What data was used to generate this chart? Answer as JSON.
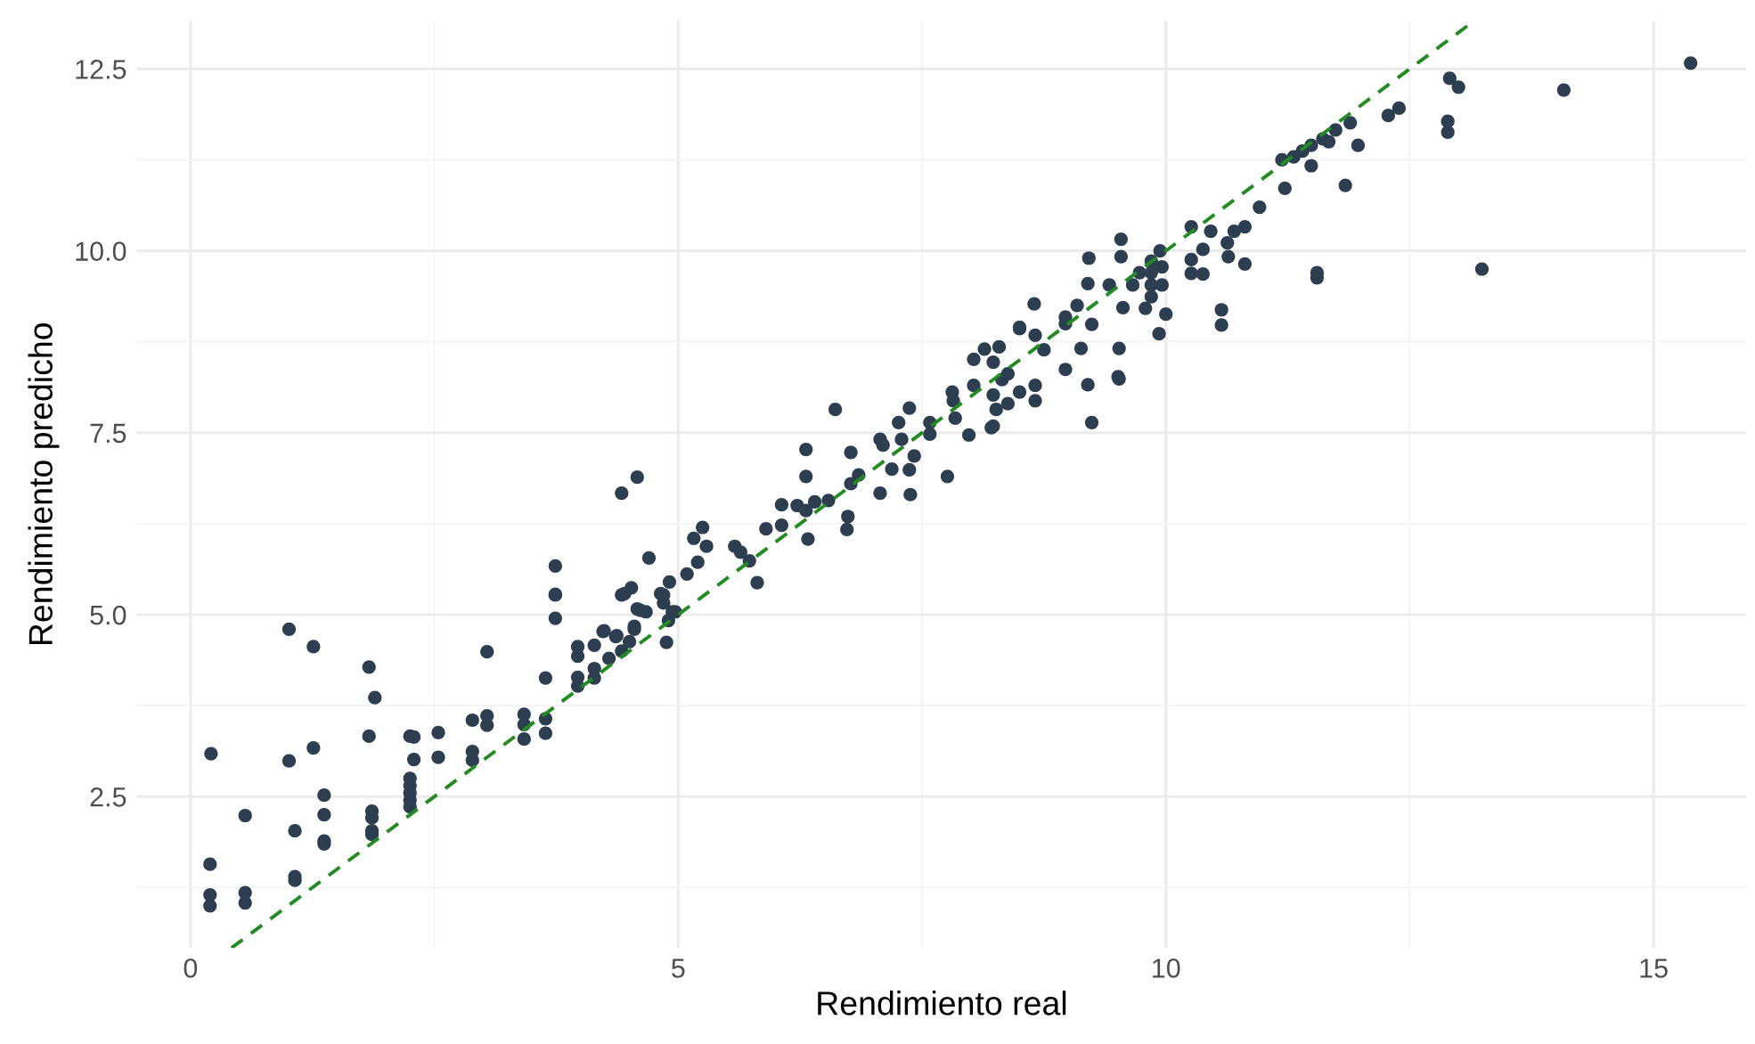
{
  "chart_data": {
    "type": "scatter",
    "xlabel": "Rendimiento real",
    "ylabel": "Rendimiento predicho",
    "xlim": [
      -0.55,
      15.95
    ],
    "ylim": [
      0.42,
      13.16
    ],
    "xticks": [
      0,
      5,
      10,
      15
    ],
    "yticks": [
      {
        "value": 2.5,
        "label": "2.5"
      },
      {
        "value": 5.0,
        "label": "5.0"
      },
      {
        "value": 7.5,
        "label": "7.5"
      },
      {
        "value": 10.0,
        "label": "10.0"
      },
      {
        "value": 12.5,
        "label": "12.5"
      }
    ],
    "grid": true,
    "marker": "circle",
    "series": [
      {
        "color": "#2c3e50",
        "x": [
          0.21,
          0.2,
          0.2,
          0.2,
          0.56,
          0.56,
          0.56,
          1.01,
          1.01,
          1.07,
          1.07,
          1.07,
          1.26,
          1.26,
          1.37,
          1.37,
          1.37,
          1.37,
          1.83,
          1.89,
          1.83,
          1.86,
          1.86,
          1.86,
          1.86,
          2.25,
          2.29,
          2.29,
          2.25,
          2.25,
          2.25,
          2.25,
          2.25,
          2.54,
          2.54,
          2.89,
          2.89,
          2.89,
          3.04,
          3.04,
          3.04,
          3.42,
          3.42,
          3.42,
          3.64,
          3.64,
          3.64,
          3.74,
          3.74,
          3.97,
          3.97,
          3.97,
          3.97,
          4.14,
          4.14,
          4.14,
          4.23,
          4.29,
          4.37,
          4.42,
          4.42,
          4.5,
          4.55,
          4.58,
          4.67,
          4.85,
          4.85,
          4.9,
          4.88,
          4.97,
          3.74,
          3.74,
          4.42,
          4.58,
          4.7,
          4.45,
          4.52,
          4.24,
          4.36,
          4.55,
          4.61,
          4.82,
          4.91,
          4.94,
          5.09,
          5.16,
          5.25,
          5.2,
          5.29,
          5.58,
          5.64,
          5.73,
          5.81,
          5.9,
          6.06,
          6.06,
          6.22,
          6.31,
          6.31,
          6.31,
          6.33,
          6.4,
          6.54,
          6.61,
          6.74,
          6.73,
          6.77,
          6.77,
          6.85,
          7.07,
          7.07,
          7.1,
          7.26,
          7.29,
          7.19,
          7.37,
          7.37,
          7.38,
          7.42,
          7.58,
          7.58,
          7.76,
          7.81,
          7.82,
          7.84,
          7.98,
          8.03,
          8.03,
          8.14,
          8.23,
          8.23,
          8.23,
          8.29,
          8.32,
          8.38,
          8.5,
          8.5,
          8.65,
          8.66,
          8.66,
          8.66,
          8.75,
          8.97,
          8.97,
          9.09,
          9.2,
          9.2,
          9.24,
          9.24,
          9.42,
          9.51,
          15.38,
          14.08,
          12.91,
          13.0,
          12.89,
          12.89,
          13.24,
          12.28,
          12.39,
          11.55,
          11.55,
          11.84,
          11.97,
          11.89,
          11.74,
          11.61,
          11.49,
          11.4,
          11.31,
          11.19,
          11.49,
          11.67,
          11.22,
          10.96,
          10.81,
          10.7,
          10.63,
          10.64,
          10.81,
          10.46,
          10.38,
          10.26,
          10.26,
          10.38,
          10.26,
          10.57,
          10.57,
          10.0,
          9.93,
          9.54,
          9.54,
          9.21,
          9.85,
          9.85,
          9.85,
          9.85,
          9.79,
          9.94,
          9.96,
          9.96,
          9.73,
          9.66,
          9.56,
          9.52,
          9.52,
          8.97,
          9.13,
          8.5,
          8.26,
          8.21,
          8.38
        ],
        "values": [
          3.09,
          1.57,
          1.15,
          1.0,
          2.24,
          1.18,
          1.04,
          4.8,
          2.99,
          2.03,
          1.4,
          1.35,
          4.56,
          3.17,
          2.52,
          2.25,
          1.89,
          1.85,
          4.28,
          3.86,
          3.33,
          2.3,
          2.21,
          2.03,
          1.98,
          3.33,
          3.32,
          3.01,
          2.75,
          2.65,
          2.55,
          2.45,
          2.36,
          3.38,
          3.04,
          3.55,
          3.12,
          3.0,
          4.49,
          3.61,
          3.48,
          3.63,
          3.49,
          3.29,
          4.13,
          3.57,
          3.37,
          5.27,
          4.95,
          4.56,
          4.43,
          4.14,
          4.02,
          4.58,
          4.26,
          4.13,
          4.77,
          4.4,
          4.71,
          5.27,
          4.5,
          4.63,
          4.8,
          5.08,
          5.04,
          5.27,
          5.16,
          4.92,
          4.62,
          5.04,
          5.67,
          5.28,
          6.67,
          6.89,
          5.78,
          5.29,
          5.37,
          4.78,
          4.7,
          4.84,
          5.06,
          5.29,
          5.45,
          5.04,
          5.56,
          6.05,
          6.2,
          5.72,
          5.94,
          5.94,
          5.86,
          5.74,
          5.44,
          6.18,
          6.51,
          6.23,
          6.5,
          7.27,
          6.9,
          6.43,
          6.04,
          6.55,
          6.57,
          7.82,
          6.35,
          6.17,
          7.23,
          6.8,
          6.92,
          7.41,
          6.67,
          7.33,
          7.64,
          7.41,
          7.0,
          7.84,
          6.99,
          6.65,
          7.18,
          7.64,
          7.48,
          6.9,
          8.06,
          7.94,
          7.7,
          7.47,
          8.51,
          8.15,
          8.65,
          8.47,
          8.02,
          7.59,
          8.68,
          8.23,
          7.9,
          8.93,
          8.06,
          9.27,
          8.84,
          8.15,
          7.94,
          8.64,
          9.0,
          8.37,
          9.25,
          9.55,
          8.16,
          7.64,
          8.99,
          9.53,
          8.27,
          12.58,
          12.21,
          12.37,
          12.25,
          11.78,
          11.63,
          9.75,
          11.86,
          11.96,
          9.7,
          9.63,
          10.9,
          11.45,
          11.76,
          11.66,
          11.54,
          11.45,
          11.37,
          11.29,
          11.25,
          11.17,
          11.5,
          10.86,
          10.6,
          10.33,
          10.27,
          10.11,
          9.92,
          9.82,
          10.27,
          10.02,
          10.33,
          9.88,
          9.68,
          9.69,
          9.19,
          8.98,
          9.13,
          8.86,
          10.16,
          9.92,
          9.9,
          9.86,
          9.7,
          9.53,
          9.37,
          9.21,
          10.0,
          9.78,
          9.53,
          9.7,
          9.53,
          9.22,
          8.66,
          8.24,
          9.09,
          8.66,
          8.95,
          7.82,
          7.57,
          8.31
        ]
      },
      {
        "type": "line",
        "color": "#228b22",
        "line_style": "dashed",
        "marker": "none",
        "x": [
          0.42,
          13.16
        ],
        "values": [
          0.42,
          13.16
        ]
      }
    ]
  }
}
